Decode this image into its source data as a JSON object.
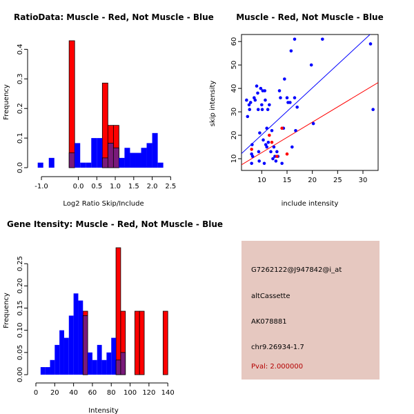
{
  "colors": {
    "red": "#ff0000",
    "blue": "#0000ff",
    "overlap": "#7a1a7a",
    "panel": "#e6c8c0"
  },
  "chart_data": [
    {
      "type": "histogram",
      "title": "RatioData: Muscle - Red, Not Muscle - Blue",
      "xlabel": "Log2 Ratio Skip/Include",
      "ylabel": "Frequency",
      "xlim": [
        -1.15,
        2.55
      ],
      "ylim": [
        0,
        0.45
      ],
      "xticks": [
        -1.0,
        0.0,
        0.5,
        1.0,
        1.5,
        2.0,
        2.5
      ],
      "xtick_labels": [
        "-1.0",
        "0.0",
        "0.5",
        "1.0",
        "1.5",
        "2.0",
        "2.5"
      ],
      "yticks": [
        0.0,
        0.1,
        0.2,
        0.3,
        0.4
      ],
      "ytick_labels": [
        "0.0",
        "0.1",
        "0.2",
        "0.3",
        "0.4"
      ],
      "series": [
        {
          "name": "Muscle",
          "color": "red",
          "bins": [
            [
              -0.25,
              -0.1,
              0.429
            ],
            [
              0.65,
              0.8,
              0.286
            ],
            [
              0.8,
              0.95,
              0.143
            ],
            [
              0.95,
              1.1,
              0.143
            ]
          ]
        },
        {
          "name": "Not Muscle",
          "color": "blue",
          "bins": [
            [
              -1.1,
              -0.95,
              0.017
            ],
            [
              -0.8,
              -0.65,
              0.033
            ],
            [
              -0.25,
              -0.1,
              0.05
            ],
            [
              -0.1,
              0.05,
              0.083
            ],
            [
              0.05,
              0.2,
              0.017
            ],
            [
              0.2,
              0.35,
              0.017
            ],
            [
              0.35,
              0.5,
              0.1
            ],
            [
              0.5,
              0.65,
              0.1
            ],
            [
              0.65,
              0.8,
              0.033
            ],
            [
              0.8,
              0.95,
              0.083
            ],
            [
              0.95,
              1.1,
              0.067
            ],
            [
              1.1,
              1.25,
              0.033
            ],
            [
              1.25,
              1.4,
              0.067
            ],
            [
              1.4,
              1.55,
              0.05
            ],
            [
              1.55,
              1.7,
              0.05
            ],
            [
              1.7,
              1.85,
              0.067
            ],
            [
              1.85,
              2.0,
              0.083
            ],
            [
              2.0,
              2.15,
              0.117
            ],
            [
              2.15,
              2.3,
              0.017
            ]
          ]
        }
      ]
    },
    {
      "type": "scatter",
      "title": "Muscle - Red, Not Muscle - Blue",
      "xlabel": "include intensity",
      "ylabel": "skip intensity",
      "xlim": [
        6,
        33
      ],
      "ylim": [
        5,
        63
      ],
      "xticks": [
        10,
        15,
        20,
        25,
        30
      ],
      "xtick_labels": [
        "10",
        "15",
        "20",
        "25",
        "30"
      ],
      "yticks": [
        10,
        20,
        30,
        40,
        50,
        60
      ],
      "ytick_labels": [
        "10",
        "20",
        "30",
        "40",
        "50",
        "60"
      ],
      "series": [
        {
          "name": "Not Muscle",
          "color": "blue",
          "points": [
            [
              7.0,
              35
            ],
            [
              7.2,
              28
            ],
            [
              7.5,
              33
            ],
            [
              7.6,
              31
            ],
            [
              7.8,
              34
            ],
            [
              8.0,
              12
            ],
            [
              8.1,
              16
            ],
            [
              8.2,
              11
            ],
            [
              8.0,
              8
            ],
            [
              8.5,
              36
            ],
            [
              8.7,
              35
            ],
            [
              9.0,
              41
            ],
            [
              9.2,
              38
            ],
            [
              9.3,
              31
            ],
            [
              9.4,
              13
            ],
            [
              9.5,
              9
            ],
            [
              9.6,
              21
            ],
            [
              9.8,
              40
            ],
            [
              10.0,
              33
            ],
            [
              10.1,
              31
            ],
            [
              10.2,
              39
            ],
            [
              10.3,
              18
            ],
            [
              10.5,
              8
            ],
            [
              10.6,
              39
            ],
            [
              10.7,
              35
            ],
            [
              10.8,
              16
            ],
            [
              11.0,
              23
            ],
            [
              11.0,
              15
            ],
            [
              11.2,
              31
            ],
            [
              11.3,
              17
            ],
            [
              11.5,
              33
            ],
            [
              11.8,
              13
            ],
            [
              12.0,
              22
            ],
            [
              12.2,
              10
            ],
            [
              12.4,
              15
            ],
            [
              12.6,
              11
            ],
            [
              12.8,
              9
            ],
            [
              13.0,
              13
            ],
            [
              13.2,
              11
            ],
            [
              13.5,
              39
            ],
            [
              13.7,
              36
            ],
            [
              14.0,
              8
            ],
            [
              14.3,
              23
            ],
            [
              14.5,
              44
            ],
            [
              15.0,
              36
            ],
            [
              15.2,
              34
            ],
            [
              15.6,
              34
            ],
            [
              15.8,
              56
            ],
            [
              16.0,
              15
            ],
            [
              16.5,
              61
            ],
            [
              16.5,
              36
            ],
            [
              16.7,
              22
            ],
            [
              17.0,
              32
            ],
            [
              19.8,
              50
            ],
            [
              20.2,
              25
            ],
            [
              22.0,
              61
            ],
            [
              31.5,
              59
            ],
            [
              32.0,
              31
            ]
          ]
        },
        {
          "name": "Muscle",
          "color": "red",
          "points": [
            [
              8.0,
              14
            ],
            [
              11.5,
              20
            ],
            [
              12.0,
              17
            ],
            [
              13.0,
              11
            ],
            [
              14.0,
              23
            ],
            [
              15.0,
              12
            ]
          ]
        }
      ],
      "lines": [
        {
          "color": "blue",
          "from": [
            6,
            12.2
          ],
          "to": [
            33,
            66.2
          ]
        },
        {
          "color": "red",
          "from": [
            6,
            7.4
          ],
          "to": [
            33,
            42.5
          ]
        }
      ]
    },
    {
      "type": "histogram",
      "title": "Gene Itensity: Muscle - Red, Not Muscle - Blue",
      "xlabel": "Intensity",
      "ylabel": "Frequency",
      "xlim": [
        0,
        145
      ],
      "ylim": [
        0,
        0.3
      ],
      "xticks": [
        0,
        20,
        40,
        60,
        80,
        100,
        120,
        140
      ],
      "xtick_labels": [
        "0",
        "20",
        "40",
        "60",
        "80",
        "100",
        "120",
        "140"
      ],
      "yticks": [
        0.0,
        0.05,
        0.1,
        0.15,
        0.2,
        0.25
      ],
      "ytick_labels": [
        "0.00",
        "0.05",
        "0.10",
        "0.15",
        "0.20",
        "0.25"
      ],
      "series": [
        {
          "name": "Muscle",
          "color": "red",
          "bins": [
            [
              50,
              55,
              0.143
            ],
            [
              85,
              90,
              0.286
            ],
            [
              90,
              95,
              0.143
            ],
            [
              105,
              110,
              0.143
            ],
            [
              110,
              115,
              0.143
            ],
            [
              135,
              140,
              0.143
            ]
          ]
        },
        {
          "name": "Not Muscle",
          "color": "blue",
          "bins": [
            [
              5,
              10,
              0.017
            ],
            [
              10,
              15,
              0.017
            ],
            [
              15,
              20,
              0.033
            ],
            [
              20,
              25,
              0.067
            ],
            [
              25,
              30,
              0.1
            ],
            [
              30,
              35,
              0.083
            ],
            [
              35,
              40,
              0.133
            ],
            [
              40,
              45,
              0.183
            ],
            [
              45,
              50,
              0.167
            ],
            [
              50,
              55,
              0.133
            ],
            [
              55,
              60,
              0.05
            ],
            [
              60,
              65,
              0.033
            ],
            [
              65,
              70,
              0.067
            ],
            [
              70,
              75,
              0.033
            ],
            [
              75,
              80,
              0.05
            ],
            [
              80,
              85,
              0.083
            ],
            [
              85,
              90,
              0.033
            ],
            [
              90,
              95,
              0.05
            ]
          ]
        }
      ]
    }
  ],
  "info": {
    "probe_id": "G7262122@J947842@i_at",
    "event_type": "altCassette",
    "accession": "AK078881",
    "location": "chr9.26934-1.7",
    "pval": "Pval: 2.000000"
  }
}
